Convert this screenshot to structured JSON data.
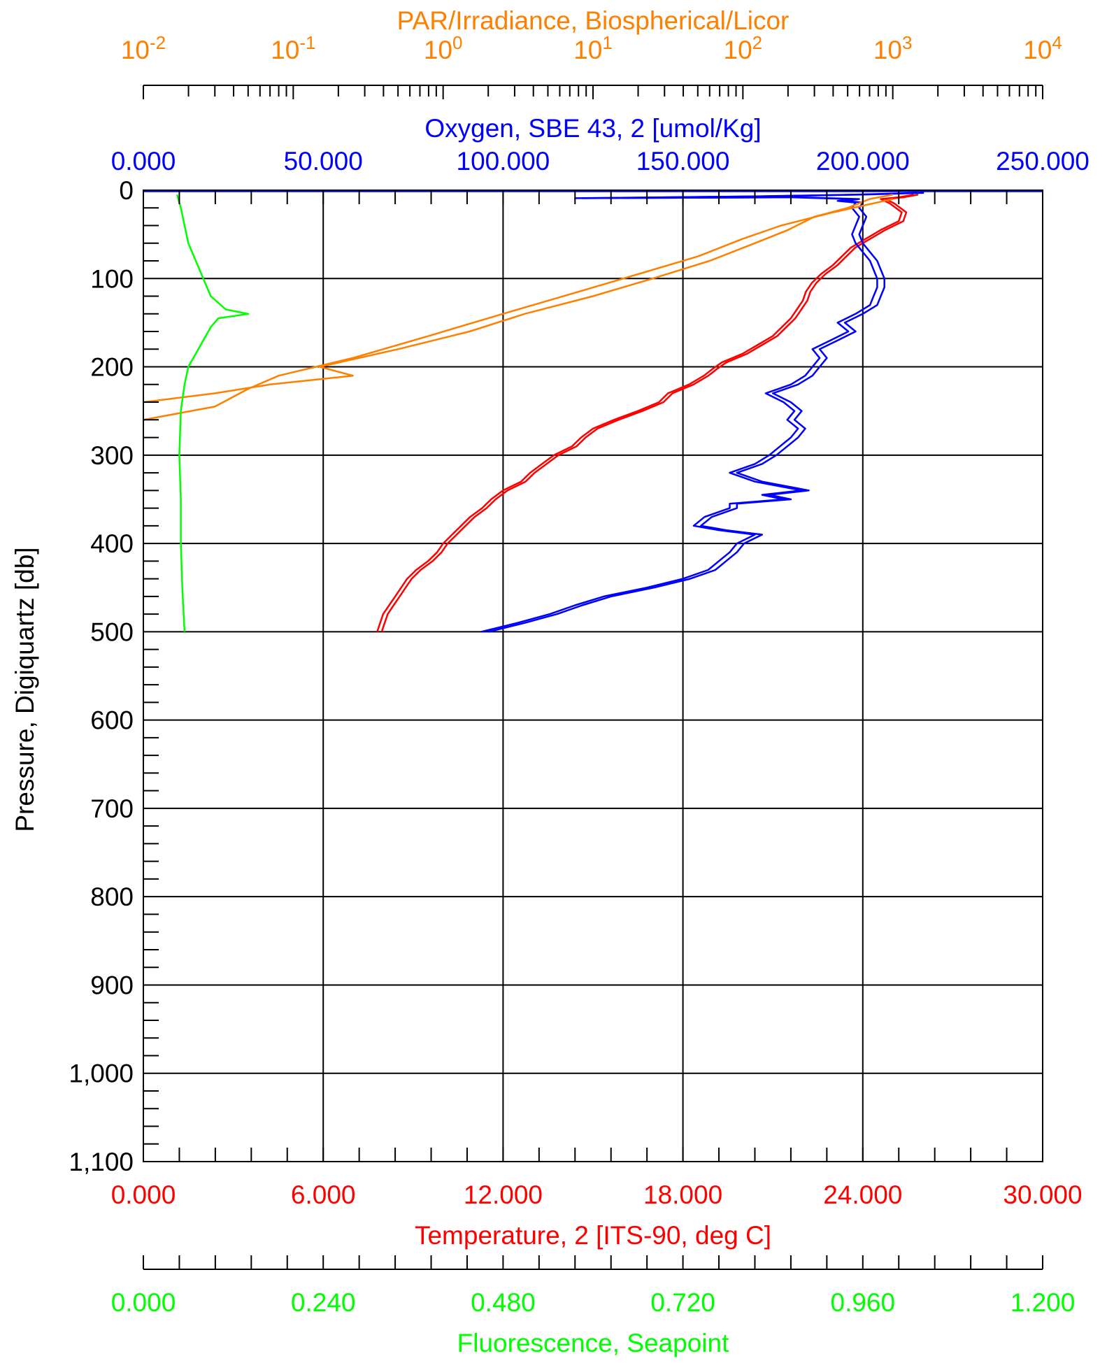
{
  "chart_data": {
    "type": "line",
    "y_axis": {
      "label": "Pressure, Digiquartz [db]",
      "range": [
        0,
        1100
      ],
      "inverted": true,
      "ticks": [
        "0",
        "100",
        "200",
        "300",
        "400",
        "500",
        "600",
        "700",
        "800",
        "900",
        "1,000",
        "1,100"
      ],
      "tick_values": [
        0,
        100,
        200,
        300,
        400,
        500,
        600,
        700,
        800,
        900,
        1000,
        1100
      ]
    },
    "x_axes": [
      {
        "id": "par",
        "label": "PAR/Irradiance, Biospherical/Licor",
        "position": "top-outer",
        "scale": "log",
        "range": [
          0.01,
          10000
        ],
        "ticks": [
          {
            "base": "10",
            "exp": "-2",
            "value": 0.01
          },
          {
            "base": "10",
            "exp": "-1",
            "value": 0.1
          },
          {
            "base": "10",
            "exp": "0",
            "value": 1
          },
          {
            "base": "10",
            "exp": "1",
            "value": 10
          },
          {
            "base": "10",
            "exp": "2",
            "value": 100
          },
          {
            "base": "10",
            "exp": "3",
            "value": 1000
          },
          {
            "base": "10",
            "exp": "4",
            "value": 10000
          }
        ],
        "color": "#ff8000"
      },
      {
        "id": "oxygen",
        "label": "Oxygen, SBE 43, 2 [umol/Kg]",
        "position": "top-inner",
        "scale": "linear",
        "range": [
          0,
          250
        ],
        "ticks": [
          "0.000",
          "50.000",
          "100.000",
          "150.000",
          "200.000",
          "250.000"
        ],
        "tick_values": [
          0,
          50,
          100,
          150,
          200,
          250
        ],
        "color": "#0000ff"
      },
      {
        "id": "temperature",
        "label": "Temperature, 2 [ITS-90, deg C]",
        "position": "bottom-inner",
        "scale": "linear",
        "range": [
          0,
          30
        ],
        "ticks": [
          "0.000",
          "6.000",
          "12.000",
          "18.000",
          "24.000",
          "30.000"
        ],
        "tick_values": [
          0,
          6,
          12,
          18,
          24,
          30
        ],
        "color": "#ff0000"
      },
      {
        "id": "fluorescence",
        "label": "Fluorescence, Seapoint",
        "position": "bottom-outer",
        "scale": "linear",
        "range": [
          0,
          1.2
        ],
        "ticks": [
          "0.000",
          "0.240",
          "0.480",
          "0.720",
          "0.960",
          "1.200"
        ],
        "tick_values": [
          0,
          0.24,
          0.48,
          0.72,
          0.96,
          1.2
        ],
        "color": "#00ff00"
      }
    ],
    "grid": true,
    "series": [
      {
        "name": "Temperature, 2 [ITS-90, deg C]",
        "axis": "temperature",
        "color": "#ff0000",
        "points": [
          [
            25.7,
            5
          ],
          [
            25.2,
            8
          ],
          [
            24.6,
            10
          ],
          [
            24.9,
            15
          ],
          [
            25.3,
            25
          ],
          [
            25.2,
            35
          ],
          [
            24.6,
            45
          ],
          [
            24.1,
            55
          ],
          [
            23.6,
            65
          ],
          [
            23.3,
            75
          ],
          [
            23.0,
            85
          ],
          [
            22.6,
            95
          ],
          [
            22.3,
            105
          ],
          [
            22.1,
            115
          ],
          [
            22.0,
            125
          ],
          [
            21.8,
            135
          ],
          [
            21.6,
            145
          ],
          [
            21.3,
            155
          ],
          [
            21.0,
            165
          ],
          [
            20.5,
            175
          ],
          [
            20.0,
            185
          ],
          [
            19.3,
            195
          ],
          [
            19.0,
            202
          ],
          [
            18.7,
            210
          ],
          [
            18.2,
            220
          ],
          [
            17.5,
            230
          ],
          [
            17.2,
            240
          ],
          [
            16.5,
            250
          ],
          [
            15.7,
            260
          ],
          [
            15.0,
            270
          ],
          [
            14.6,
            280
          ],
          [
            14.3,
            290
          ],
          [
            13.7,
            300
          ],
          [
            13.3,
            310
          ],
          [
            12.9,
            320
          ],
          [
            12.6,
            330
          ],
          [
            12.0,
            340
          ],
          [
            11.6,
            350
          ],
          [
            11.3,
            360
          ],
          [
            10.9,
            370
          ],
          [
            10.6,
            380
          ],
          [
            10.3,
            390
          ],
          [
            10.0,
            400
          ],
          [
            9.8,
            410
          ],
          [
            9.5,
            420
          ],
          [
            9.1,
            430
          ],
          [
            8.8,
            440
          ],
          [
            8.6,
            450
          ],
          [
            8.4,
            460
          ],
          [
            8.2,
            470
          ],
          [
            8.0,
            480
          ],
          [
            7.9,
            490
          ],
          [
            7.8,
            500
          ]
        ],
        "offset": 0.15
      },
      {
        "name": "Oxygen, SBE 43, 2 [umol/Kg]",
        "axis": "oxygen",
        "color": "#0000ff",
        "points": [
          [
            215,
            3
          ],
          [
            198,
            5
          ],
          [
            170,
            7
          ],
          [
            120,
            9
          ],
          [
            180,
            8
          ],
          [
            197,
            10
          ],
          [
            193,
            12
          ],
          [
            198,
            14
          ],
          [
            197,
            20
          ],
          [
            199,
            30
          ],
          [
            198,
            40
          ],
          [
            197,
            50
          ],
          [
            198,
            60
          ],
          [
            200,
            70
          ],
          [
            202,
            80
          ],
          [
            203,
            90
          ],
          [
            204,
            100
          ],
          [
            204,
            110
          ],
          [
            203,
            120
          ],
          [
            202,
            130
          ],
          [
            198,
            140
          ],
          [
            193,
            150
          ],
          [
            196,
            160
          ],
          [
            191,
            170
          ],
          [
            186,
            180
          ],
          [
            188,
            190
          ],
          [
            186,
            200
          ],
          [
            184,
            210
          ],
          [
            180,
            220
          ],
          [
            173,
            230
          ],
          [
            178,
            240
          ],
          [
            181,
            250
          ],
          [
            179,
            260
          ],
          [
            182,
            270
          ],
          [
            180,
            280
          ],
          [
            177,
            290
          ],
          [
            174,
            300
          ],
          [
            170,
            310
          ],
          [
            163,
            320
          ],
          [
            170,
            330
          ],
          [
            183,
            340
          ],
          [
            172,
            345
          ],
          [
            178,
            350
          ],
          [
            163,
            355
          ],
          [
            163,
            360
          ],
          [
            156,
            370
          ],
          [
            153,
            380
          ],
          [
            160,
            385
          ],
          [
            170,
            390
          ],
          [
            165,
            400
          ],
          [
            163,
            410
          ],
          [
            160,
            420
          ],
          [
            157,
            430
          ],
          [
            150,
            440
          ],
          [
            140,
            450
          ],
          [
            128,
            460
          ],
          [
            120,
            470
          ],
          [
            113,
            480
          ],
          [
            104,
            490
          ],
          [
            94,
            500
          ]
        ],
        "offset": 2.0
      },
      {
        "name": "PAR/Irradiance, Biospherical/Licor",
        "axis": "par",
        "color": "#ff8000",
        "points": [
          [
            1000,
            5
          ],
          [
            700,
            10
          ],
          [
            500,
            20
          ],
          [
            300,
            30
          ],
          [
            200,
            45
          ],
          [
            120,
            60
          ],
          [
            60,
            80
          ],
          [
            25,
            100
          ],
          [
            10,
            120
          ],
          [
            3.5,
            140
          ],
          [
            1.5,
            160
          ],
          [
            0.5,
            180
          ],
          [
            0.15,
            200
          ],
          [
            0.25,
            210
          ],
          [
            0.07,
            220
          ],
          [
            0.03,
            230
          ],
          [
            0.01,
            240
          ]
        ],
        "points2": [
          [
            1000,
            10
          ],
          [
            400,
            25
          ],
          [
            180,
            40
          ],
          [
            100,
            55
          ],
          [
            50,
            75
          ],
          [
            20,
            95
          ],
          [
            8,
            115
          ],
          [
            2.5,
            140
          ],
          [
            0.8,
            165
          ],
          [
            0.25,
            190
          ],
          [
            0.08,
            210
          ],
          [
            0.05,
            225
          ],
          [
            0.03,
            245
          ],
          [
            0.01,
            260
          ]
        ]
      },
      {
        "name": "Fluorescence, Seapoint",
        "axis": "fluorescence",
        "color": "#00ff00",
        "points": [
          [
            0.045,
            5
          ],
          [
            0.05,
            20
          ],
          [
            0.055,
            40
          ],
          [
            0.06,
            60
          ],
          [
            0.07,
            80
          ],
          [
            0.08,
            100
          ],
          [
            0.09,
            120
          ],
          [
            0.11,
            135
          ],
          [
            0.14,
            140
          ],
          [
            0.1,
            145
          ],
          [
            0.09,
            155
          ],
          [
            0.08,
            170
          ],
          [
            0.07,
            185
          ],
          [
            0.06,
            200
          ],
          [
            0.055,
            220
          ],
          [
            0.05,
            250
          ],
          [
            0.048,
            300
          ],
          [
            0.05,
            350
          ],
          [
            0.05,
            400
          ],
          [
            0.052,
            450
          ],
          [
            0.055,
            500
          ]
        ]
      }
    ]
  }
}
